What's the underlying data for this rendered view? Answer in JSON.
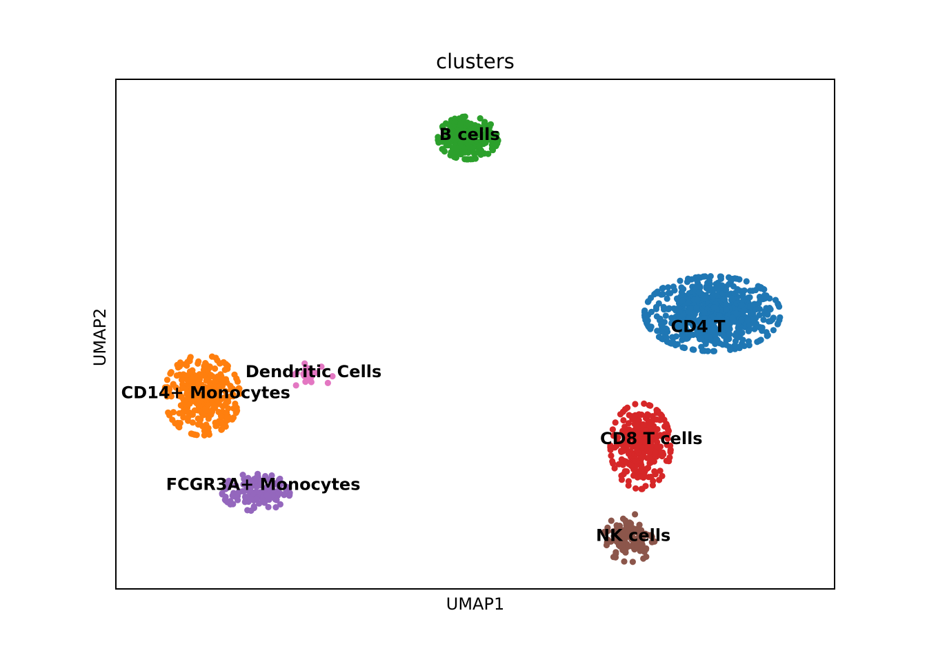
{
  "chart_data": {
    "type": "scatter",
    "title": "clusters",
    "xlabel": "UMAP1",
    "ylabel": "UMAP2",
    "xlim": [
      0,
      100
    ],
    "ylim": [
      0,
      100
    ],
    "grid": false,
    "legend": "on data",
    "ticks": "none",
    "marker": "filled circle",
    "series": [
      {
        "name": "CD4 T",
        "color": "#1f77b4",
        "count": 700,
        "center": [
          83,
          54
        ],
        "spread": [
          9,
          7
        ],
        "label_at": [
          81,
          51.5
        ]
      },
      {
        "name": "CD14+ Monocytes",
        "color": "#ff7f0e",
        "count": 330,
        "center": [
          12,
          38
        ],
        "spread": [
          5,
          7.5
        ],
        "label_at": [
          12.5,
          38.5
        ]
      },
      {
        "name": "B cells",
        "color": "#2ca02c",
        "count": 230,
        "center": [
          49,
          88.5
        ],
        "spread": [
          4,
          4
        ],
        "label_at": [
          49.2,
          89.2
        ]
      },
      {
        "name": "CD8 T cells",
        "color": "#d62728",
        "count": 270,
        "center": [
          73,
          28
        ],
        "spread": [
          4,
          8
        ],
        "label_at": [
          74.5,
          29.5
        ]
      },
      {
        "name": "FCGR3A+ Monocytes",
        "color": "#9467bd",
        "count": 130,
        "center": [
          19.5,
          19
        ],
        "spread": [
          4.5,
          3.5
        ],
        "label_at": [
          20.5,
          20.5
        ]
      },
      {
        "name": "NK cells",
        "color": "#8c564b",
        "count": 110,
        "center": [
          71.5,
          10
        ],
        "spread": [
          3.5,
          4.5
        ],
        "label_at": [
          72,
          10.5
        ]
      },
      {
        "name": "Dendritic Cells",
        "color": "#e377c2",
        "count": 22,
        "center": [
          27,
          42
        ],
        "spread": [
          3,
          2.5
        ],
        "label_at": [
          27.5,
          42.6
        ]
      }
    ]
  }
}
